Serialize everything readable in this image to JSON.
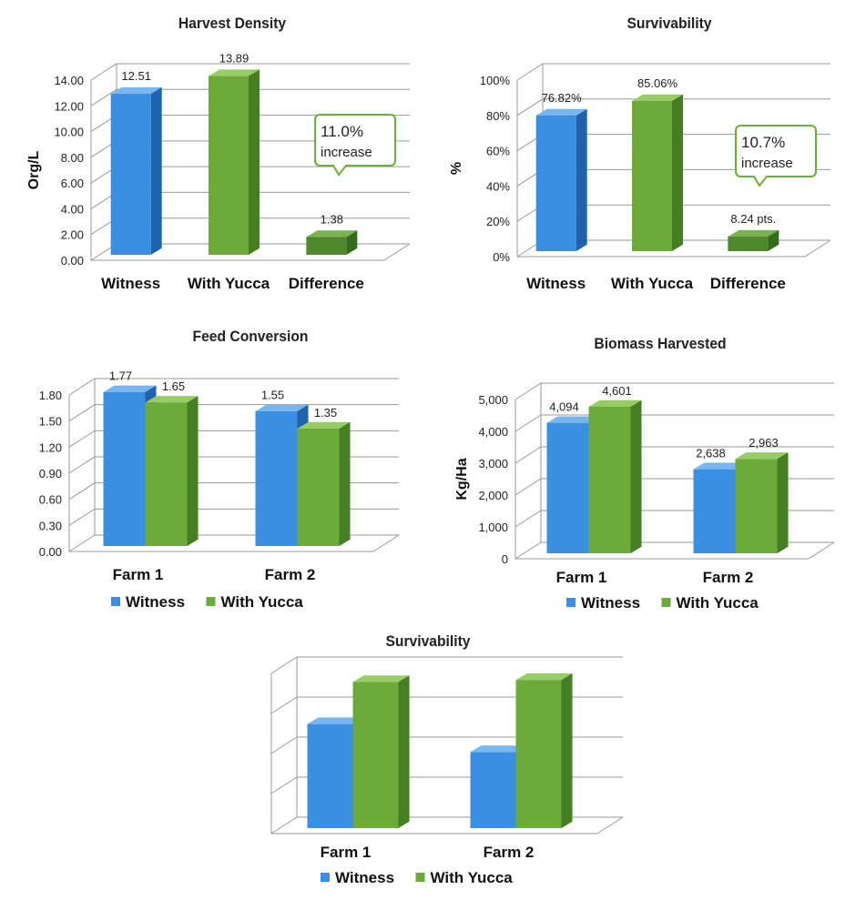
{
  "colors": {
    "witness": "#3a8fe0",
    "witness_side": "#1f62ad",
    "witness_top": "#79b6f0",
    "yucca": "#6cab3a",
    "yucca_side": "#457e23",
    "yucca_top": "#99cc66",
    "diff": "#4e8a2c",
    "diff_side": "#356b1d",
    "diff_top": "#7bb155",
    "grid": "#9a9a9a",
    "callout_border": "#6fae3a"
  },
  "chart_data": [
    {
      "type": "bar",
      "title": "Harvest Density",
      "ylabel": "Org/L",
      "categories": [
        "Witness",
        "With Yucca",
        "Difference"
      ],
      "values": [
        12.51,
        13.89,
        1.38
      ],
      "data_labels": [
        "12.51",
        "13.89",
        "1.38"
      ],
      "ylim": [
        0,
        14
      ],
      "yticks": [
        "0.00",
        "2.00",
        "4.00",
        "6.00",
        "8.00",
        "10.00",
        "12.00",
        "14.00"
      ],
      "callout": [
        "11.0%",
        "increase"
      ],
      "grid": true
    },
    {
      "type": "bar",
      "title": "Survivability",
      "ylabel": "%",
      "categories": [
        "Witness",
        "With Yucca",
        "Difference"
      ],
      "values": [
        76.82,
        85.06,
        8.24
      ],
      "data_labels": [
        "76.82%",
        "85.06%",
        "8.24 pts."
      ],
      "ylim": [
        0,
        100
      ],
      "yticks": [
        "0%",
        "20%",
        "40%",
        "60%",
        "80%",
        "100%"
      ],
      "callout": [
        "10.7%",
        "increase"
      ],
      "grid": true
    },
    {
      "type": "bar",
      "title": "Feed Conversion",
      "ylabel": "",
      "categories": [
        "Farm 1",
        "Farm 2"
      ],
      "series": [
        {
          "name": "Witness",
          "values": [
            1.77,
            1.55
          ],
          "data_labels": [
            "1.77",
            "1.55"
          ]
        },
        {
          "name": "With Yucca",
          "values": [
            1.65,
            1.35
          ],
          "data_labels": [
            "1.65",
            "1.35"
          ]
        }
      ],
      "ylim": [
        0,
        1.8
      ],
      "yticks": [
        "0.00",
        "0.30",
        "0.60",
        "0.90",
        "1.20",
        "1.50",
        "1.80"
      ],
      "legend": "bottom",
      "grid": true
    },
    {
      "type": "bar",
      "title": "Biomass Harvested",
      "ylabel": "Kg/Ha",
      "categories": [
        "Farm 1",
        "Farm 2"
      ],
      "series": [
        {
          "name": "Witness",
          "values": [
            4094,
            2638
          ],
          "data_labels": [
            "4,094",
            "2,638"
          ]
        },
        {
          "name": "With Yucca",
          "values": [
            4601,
            2963
          ],
          "data_labels": [
            "4,601",
            "2,963"
          ]
        }
      ],
      "ylim": [
        0,
        5000
      ],
      "yticks": [
        "0",
        "1,000",
        "2,000",
        "3,000",
        "4,000",
        "5,000"
      ],
      "legend": "bottom",
      "grid": true
    },
    {
      "type": "bar",
      "title": "Survivability",
      "ylabel": "",
      "categories": [
        "Farm 1",
        "Farm 2"
      ],
      "series": [
        {
          "name": "Witness",
          "values": [
            2.6,
            1.9
          ]
        },
        {
          "name": "With Yucca",
          "values": [
            3.65,
            3.7
          ]
        }
      ],
      "ylim": [
        0,
        4
      ],
      "yticks": [],
      "legend": "bottom",
      "grid": true
    }
  ]
}
